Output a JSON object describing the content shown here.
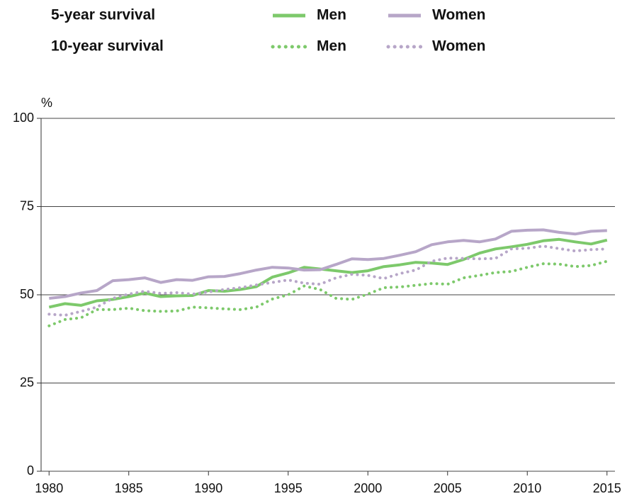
{
  "chart_data": {
    "type": "line",
    "y_label": "%",
    "x": [
      1980,
      1981,
      1982,
      1983,
      1984,
      1985,
      1986,
      1987,
      1988,
      1989,
      1990,
      1991,
      1992,
      1993,
      1994,
      1995,
      1996,
      1997,
      1998,
      1999,
      2000,
      2001,
      2002,
      2003,
      2004,
      2005,
      2006,
      2007,
      2008,
      2009,
      2010,
      2011,
      2012,
      2013,
      2014,
      2015
    ],
    "xlim": [
      1979.5,
      2015.5
    ],
    "xticks": [
      1980,
      1985,
      1990,
      1995,
      2000,
      2005,
      2010,
      2015
    ],
    "ylim": [
      0,
      100
    ],
    "yticks": [
      0,
      25,
      50,
      75,
      100
    ],
    "grid": true,
    "series": [
      {
        "name": "Men",
        "group": "5-year survival",
        "color": "#7dc96b",
        "dashed": false,
        "values": [
          46.5,
          47.5,
          47,
          48.3,
          48.7,
          49.5,
          50.5,
          49.5,
          49.7,
          49.8,
          51.2,
          51,
          51.5,
          52.3,
          55,
          56.2,
          57.8,
          57.3,
          56.8,
          56.3,
          56.8,
          58,
          58.5,
          59.2,
          59,
          58.6,
          60,
          61.8,
          63,
          63.6,
          64.3,
          65.3,
          65.7,
          65,
          64.4,
          65.5
        ]
      },
      {
        "name": "Women",
        "group": "5-year survival",
        "color": "#b7a6c8",
        "dashed": false,
        "values": [
          49,
          49.5,
          50.5,
          51.2,
          54,
          54.3,
          54.8,
          53.5,
          54.3,
          54.1,
          55.1,
          55.2,
          56,
          57,
          57.8,
          57.6,
          57,
          57.1,
          58.6,
          60.2,
          60,
          60.3,
          61.2,
          62.2,
          64.2,
          65,
          65.4,
          65,
          65.8,
          68,
          68.3,
          68.4,
          67.7,
          67.2,
          68,
          68.2
        ]
      },
      {
        "name": "Men",
        "group": "10-year survival",
        "color": "#7dc96b",
        "dashed": true,
        "values": [
          41.2,
          43,
          43.5,
          45.8,
          45.8,
          46.2,
          45.5,
          45.3,
          45.4,
          46.5,
          46.3,
          46,
          45.8,
          46.5,
          48.8,
          50,
          52.5,
          51.5,
          49,
          48.7,
          50.2,
          52,
          52.2,
          52.7,
          53.2,
          53,
          54.8,
          55.5,
          56.3,
          56.6,
          57.8,
          58.8,
          58.7,
          58,
          58.3,
          59.5
        ]
      },
      {
        "name": "Women",
        "group": "10-year survival",
        "color": "#b7a6c8",
        "dashed": true,
        "values": [
          44.5,
          44.2,
          45.3,
          46.5,
          49,
          50.2,
          51,
          50.4,
          50.6,
          50.2,
          50.8,
          51.5,
          52,
          52.8,
          53.5,
          54.2,
          53.3,
          53,
          54.8,
          55.8,
          55.5,
          54.6,
          56,
          57,
          59.5,
          60.4,
          60.3,
          60.2,
          60.3,
          63,
          63.2,
          63.8,
          63.1,
          62.4,
          62.8,
          63
        ]
      }
    ]
  }
}
